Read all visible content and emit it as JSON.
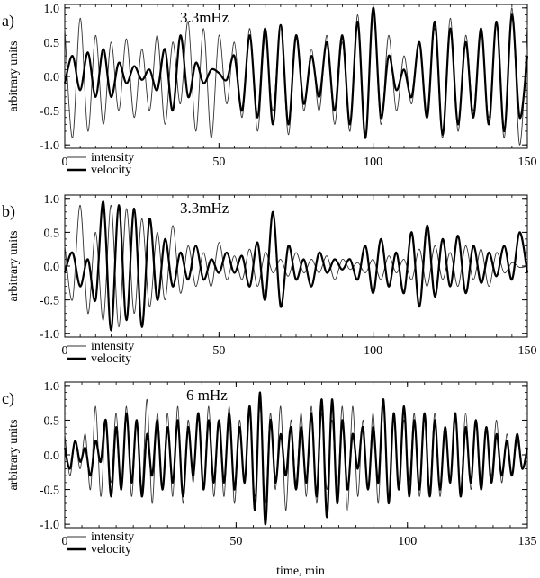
{
  "chart_data": [
    {
      "type": "line",
      "panel_label": "a)",
      "annotation": "3.3mHz",
      "ylabel": "arbitrary units",
      "xlabel": "",
      "xlim": [
        0,
        150
      ],
      "ylim": [
        -1.05,
        1.05
      ],
      "xticks": [
        0,
        50,
        100,
        150
      ],
      "yticks": [
        -1.0,
        -0.5,
        0.0,
        0.5,
        1.0
      ],
      "ytick_labels": [
        "-1.0",
        "-0.5",
        "0.0",
        "0.5",
        "1.0"
      ],
      "legend": [
        "intensity",
        "velocity"
      ],
      "legend_position": "bottom-left",
      "series": [
        {
          "name": "intensity",
          "style": "thin",
          "x": [
            0,
            2.5,
            5,
            7.5,
            10,
            12.5,
            15,
            17.5,
            20,
            22.5,
            25,
            27.5,
            30,
            32.5,
            35,
            37.5,
            40,
            42.5,
            45,
            47.5,
            50,
            52.5,
            55,
            57.5,
            60,
            62.5,
            65,
            67.5,
            70,
            72.5,
            75,
            77.5,
            80,
            82.5,
            85,
            87.5,
            90,
            92.5,
            95,
            97.5,
            100,
            102.5,
            105,
            107.5,
            110,
            112.5,
            115,
            117.5,
            120,
            122.5,
            125,
            127.5,
            130,
            132.5,
            135,
            137.5,
            140,
            142.5,
            145,
            147.5,
            150
          ],
          "y": [
            0.7,
            -0.9,
            0.85,
            -0.8,
            0.6,
            -0.7,
            0.5,
            -0.5,
            0.55,
            -0.6,
            0.4,
            -0.5,
            0.6,
            -0.7,
            0.5,
            -0.4,
            0.8,
            -0.8,
            0.7,
            -0.9,
            0.6,
            -0.4,
            0.5,
            -0.6,
            0.7,
            -0.8,
            0.6,
            -0.5,
            0.75,
            -0.85,
            0.6,
            -0.5,
            0.4,
            -0.5,
            0.6,
            -0.7,
            0.5,
            -0.8,
            0.9,
            -0.9,
            0.95,
            -0.7,
            0.6,
            -0.5,
            0.3,
            -0.4,
            0.5,
            -0.6,
            0.7,
            -0.9,
            0.85,
            -0.8,
            0.6,
            -0.5,
            0.7,
            -0.6,
            0.8,
            -0.9,
            1.0,
            -1.0,
            0.75
          ]
        },
        {
          "name": "velocity",
          "style": "thick",
          "x": [
            0,
            2.5,
            5,
            7.5,
            10,
            12.5,
            15,
            17.5,
            20,
            22.5,
            25,
            27.5,
            30,
            32.5,
            35,
            37.5,
            40,
            42.5,
            45,
            47.5,
            50,
            52.5,
            55,
            57.5,
            60,
            62.5,
            65,
            67.5,
            70,
            72.5,
            75,
            77.5,
            80,
            82.5,
            85,
            87.5,
            90,
            92.5,
            95,
            97.5,
            100,
            102.5,
            105,
            107.5,
            110,
            112.5,
            115,
            117.5,
            120,
            122.5,
            125,
            127.5,
            130,
            132.5,
            135,
            137.5,
            140,
            142.5,
            145,
            147.5,
            150
          ],
          "y": [
            -0.1,
            0.3,
            -0.2,
            0.35,
            -0.3,
            0.4,
            -0.3,
            0.2,
            -0.1,
            0.15,
            -0.05,
            0.1,
            -0.2,
            0.4,
            -0.5,
            0.6,
            -0.3,
            0.2,
            -0.1,
            0.1,
            0.05,
            -0.05,
            0.3,
            -0.5,
            0.6,
            -0.6,
            0.7,
            -0.7,
            0.75,
            -0.7,
            0.6,
            -0.4,
            0.3,
            -0.3,
            0.5,
            -0.5,
            0.6,
            -0.7,
            0.8,
            -0.9,
            1.0,
            -0.6,
            0.3,
            -0.2,
            0.1,
            -0.3,
            0.5,
            -0.6,
            0.8,
            -0.85,
            0.7,
            -0.7,
            0.5,
            -0.6,
            0.7,
            -0.7,
            0.8,
            -0.8,
            0.9,
            -0.6,
            0.3
          ]
        }
      ]
    },
    {
      "type": "line",
      "panel_label": "b)",
      "annotation": "3.3mHz",
      "ylabel": "arbitrary units",
      "xlabel": "",
      "xlim": [
        0,
        150
      ],
      "ylim": [
        -1.05,
        1.05
      ],
      "xticks": [
        0,
        50,
        100,
        150
      ],
      "yticks": [
        -1.0,
        -0.5,
        0.0,
        0.5,
        1.0
      ],
      "ytick_labels": [
        "-1.0",
        "-0.5",
        "0.0",
        "0.5",
        "1.0"
      ],
      "legend": [
        "intensity",
        "velocity"
      ],
      "legend_position": "bottom-left",
      "series": [
        {
          "name": "intensity",
          "style": "thin",
          "x": [
            0,
            2.5,
            5,
            7.5,
            10,
            12.5,
            15,
            17.5,
            20,
            22.5,
            25,
            27.5,
            30,
            32.5,
            35,
            37.5,
            40,
            42.5,
            45,
            47.5,
            50,
            52.5,
            55,
            57.5,
            60,
            62.5,
            65,
            67.5,
            70,
            72.5,
            75,
            77.5,
            80,
            82.5,
            85,
            87.5,
            90,
            92.5,
            95,
            97.5,
            100,
            102.5,
            105,
            107.5,
            110,
            112.5,
            115,
            117.5,
            120,
            122.5,
            125,
            127.5,
            130,
            132.5,
            135,
            137.5,
            140,
            142.5,
            145,
            147.5,
            150
          ],
          "y": [
            0.3,
            -0.5,
            0.9,
            -0.7,
            0.5,
            -0.8,
            0.9,
            -0.9,
            0.85,
            -0.7,
            0.7,
            -0.6,
            0.5,
            -0.5,
            0.6,
            -0.4,
            0.3,
            -0.3,
            0.2,
            -0.3,
            0.35,
            -0.2,
            0.15,
            -0.2,
            0.25,
            -0.3,
            0.2,
            -0.1,
            0.1,
            -0.15,
            0.2,
            -0.1,
            0.1,
            -0.1,
            0.15,
            -0.2,
            0.1,
            -0.05,
            0.05,
            -0.1,
            0.1,
            -0.2,
            0.15,
            -0.1,
            0.1,
            -0.2,
            0.25,
            -0.3,
            0.3,
            -0.2,
            0.2,
            -0.3,
            0.3,
            -0.2,
            0.25,
            -0.3,
            0.2,
            -0.1,
            0.05,
            -0.02,
            0.0
          ]
        },
        {
          "name": "velocity",
          "style": "thick",
          "x": [
            0,
            2.5,
            5,
            7.5,
            10,
            12.5,
            15,
            17.5,
            20,
            22.5,
            25,
            27.5,
            30,
            32.5,
            35,
            37.5,
            40,
            42.5,
            45,
            47.5,
            50,
            52.5,
            55,
            57.5,
            60,
            62.5,
            65,
            67.5,
            70,
            72.5,
            75,
            77.5,
            80,
            82.5,
            85,
            87.5,
            90,
            92.5,
            95,
            97.5,
            100,
            102.5,
            105,
            107.5,
            110,
            112.5,
            115,
            117.5,
            120,
            122.5,
            125,
            127.5,
            130,
            132.5,
            135,
            137.5,
            140,
            142.5,
            145,
            147.5,
            150
          ],
          "y": [
            -0.1,
            0.2,
            -0.3,
            0.1,
            -0.5,
            0.95,
            -0.95,
            0.9,
            -0.8,
            0.85,
            -0.9,
            0.7,
            -0.5,
            0.4,
            -0.3,
            0.2,
            -0.2,
            0.3,
            -0.2,
            0.1,
            -0.1,
            0.2,
            -0.1,
            0.15,
            -0.3,
            0.35,
            -0.5,
            0.8,
            -0.6,
            0.3,
            -0.2,
            0.1,
            -0.3,
            0.2,
            -0.1,
            0.1,
            -0.05,
            0.1,
            -0.2,
            0.3,
            -0.4,
            0.4,
            -0.3,
            0.2,
            -0.4,
            0.5,
            -0.6,
            0.6,
            -0.45,
            0.4,
            -0.3,
            0.45,
            -0.4,
            0.3,
            -0.25,
            0.2,
            -0.15,
            0.3,
            -0.2,
            0.5,
            -0.1
          ]
        }
      ]
    },
    {
      "type": "line",
      "panel_label": "c)",
      "annotation": "6 mHz",
      "ylabel": "arbitrary units",
      "xlabel": "time, min",
      "xlim": [
        0,
        135
      ],
      "ylim": [
        -1.05,
        1.05
      ],
      "xticks": [
        0,
        50,
        100,
        135
      ],
      "yticks": [
        -1.0,
        -0.5,
        0.0,
        0.5,
        1.0
      ],
      "ytick_labels": [
        "-1.0",
        "-0.5",
        "0.0",
        "0.5",
        "1.0"
      ],
      "legend": [
        "intensity",
        "velocity"
      ],
      "legend_position": "bottom-left",
      "series": [
        {
          "name": "intensity",
          "style": "thin",
          "x": [
            0,
            1.5,
            3,
            4.5,
            6,
            7.5,
            9,
            10.5,
            12,
            13.5,
            15,
            16.5,
            18,
            19.5,
            21,
            22.5,
            24,
            25.5,
            27,
            28.5,
            30,
            31.5,
            33,
            34.5,
            36,
            37.5,
            39,
            40.5,
            42,
            43.5,
            45,
            46.5,
            48,
            49.5,
            51,
            52.5,
            54,
            55.5,
            57,
            58.5,
            60,
            61.5,
            63,
            64.5,
            66,
            67.5,
            69,
            70.5,
            72,
            73.5,
            75,
            76.5,
            78,
            79.5,
            81,
            82.5,
            84,
            85.5,
            87,
            88.5,
            90,
            91.5,
            93,
            94.5,
            96,
            97.5,
            99,
            100.5,
            102,
            103.5,
            105,
            106.5,
            108,
            109.5,
            111,
            112.5,
            114,
            115.5,
            117,
            118.5,
            120,
            121.5,
            123,
            124.5,
            126,
            127.5,
            129,
            130.5,
            132,
            133.5,
            135
          ],
          "y": [
            0.3,
            -0.3,
            0.2,
            -0.2,
            0.3,
            -0.5,
            0.7,
            -0.6,
            0.5,
            -0.4,
            0.6,
            -0.5,
            0.7,
            -0.6,
            0.5,
            -0.5,
            0.8,
            -0.7,
            0.6,
            -0.5,
            0.6,
            -0.6,
            0.7,
            -0.7,
            0.5,
            -0.4,
            0.6,
            -0.5,
            0.7,
            -0.6,
            0.5,
            -0.6,
            0.7,
            -0.7,
            0.5,
            -0.4,
            0.6,
            -0.6,
            0.7,
            -0.7,
            0.6,
            -0.5,
            0.7,
            -0.8,
            0.5,
            -0.4,
            0.6,
            -0.6,
            0.7,
            -0.7,
            0.6,
            -0.5,
            0.5,
            -0.6,
            0.7,
            -0.8,
            0.7,
            -0.6,
            0.5,
            -0.5,
            0.6,
            -0.7,
            0.8,
            -0.7,
            0.6,
            -0.5,
            0.5,
            -0.4,
            0.6,
            -0.6,
            0.5,
            -0.5,
            0.6,
            -0.6,
            0.4,
            -0.4,
            0.5,
            -0.5,
            0.6,
            -0.5,
            0.5,
            -0.4,
            0.4,
            -0.3,
            0.5,
            -0.4,
            0.3,
            -0.3,
            0.2,
            -0.2,
            0.0
          ]
        },
        {
          "name": "velocity",
          "style": "thick",
          "x": [
            0,
            1.5,
            3,
            4.5,
            6,
            7.5,
            9,
            10.5,
            12,
            13.5,
            15,
            16.5,
            18,
            19.5,
            21,
            22.5,
            24,
            25.5,
            27,
            28.5,
            30,
            31.5,
            33,
            34.5,
            36,
            37.5,
            39,
            40.5,
            42,
            43.5,
            45,
            46.5,
            48,
            49.5,
            51,
            52.5,
            54,
            55.5,
            57,
            58.5,
            60,
            61.5,
            63,
            64.5,
            66,
            67.5,
            69,
            70.5,
            72,
            73.5,
            75,
            76.5,
            78,
            79.5,
            81,
            82.5,
            84,
            85.5,
            87,
            88.5,
            90,
            91.5,
            93,
            94.5,
            96,
            97.5,
            99,
            100.5,
            102,
            103.5,
            105,
            106.5,
            108,
            109.5,
            111,
            112.5,
            114,
            115.5,
            117,
            118.5,
            120,
            121.5,
            123,
            124.5,
            126,
            127.5,
            129,
            130.5,
            132,
            133.5,
            135
          ],
          "y": [
            0.1,
            -0.2,
            0.2,
            -0.1,
            0.1,
            -0.3,
            0.2,
            -0.1,
            0.5,
            -0.6,
            0.4,
            -0.5,
            0.6,
            -0.4,
            0.5,
            -0.6,
            0.3,
            -0.3,
            0.5,
            -0.5,
            0.4,
            -0.4,
            0.5,
            -0.6,
            0.4,
            -0.3,
            0.6,
            -0.5,
            0.5,
            -0.4,
            0.5,
            -0.4,
            0.6,
            -0.5,
            0.4,
            -0.4,
            0.7,
            -0.8,
            0.9,
            -1.0,
            0.5,
            -0.4,
            0.3,
            -0.3,
            0.4,
            -0.5,
            0.4,
            -0.4,
            0.6,
            -0.6,
            0.8,
            -0.9,
            0.8,
            -0.7,
            0.5,
            -0.5,
            0.3,
            -0.2,
            0.4,
            -0.5,
            0.4,
            -0.4,
            0.8,
            -0.7,
            0.6,
            -0.5,
            0.7,
            -0.6,
            0.5,
            -0.5,
            0.6,
            -0.6,
            0.5,
            -0.5,
            0.4,
            -0.4,
            0.6,
            -0.6,
            0.4,
            -0.4,
            0.5,
            -0.5,
            0.4,
            -0.4,
            0.3,
            -0.3,
            0.2,
            -0.3,
            0.3,
            -0.2,
            0.1
          ]
        }
      ]
    }
  ]
}
